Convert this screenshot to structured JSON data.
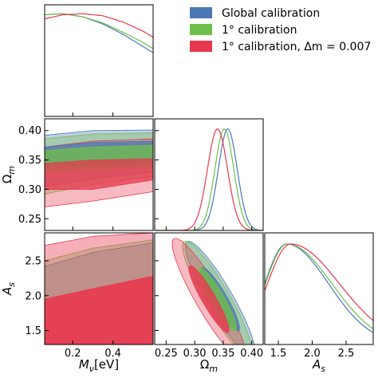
{
  "chart_data": {
    "type": "corner",
    "legend": {
      "placement": "top-right",
      "entries": [
        {
          "label": "Global calibration",
          "color": "#4a78b5"
        },
        {
          "label": "1° calibration",
          "color": "#6fbf4a"
        },
        {
          "label": "1° calibration, Δm = 0.007",
          "color": "#e8384f"
        }
      ]
    },
    "parameters": [
      {
        "label": "M_ν[eV]",
        "label_main": "M",
        "label_sub": "ν",
        "label_suffix": "[eV]",
        "range": [
          0.06,
          0.6
        ],
        "ticks": [
          "0.2",
          "0.4"
        ],
        "tick_values": [
          0.2,
          0.4
        ]
      },
      {
        "label": "Ω_m",
        "label_main": "Ω",
        "label_sub": "m",
        "label_suffix": "",
        "range": [
          0.23,
          0.42
        ],
        "ticks": [
          "0.25",
          "0.30",
          "0.35",
          "0.40"
        ],
        "tick_values": [
          0.25,
          0.3,
          0.35,
          0.4
        ]
      },
      {
        "label": "A_s",
        "label_main": "A",
        "label_sub": "s",
        "label_suffix": "",
        "range": [
          1.3,
          2.9
        ],
        "ticks": [
          "1.5",
          "2.0",
          "2.5"
        ],
        "tick_values": [
          1.5,
          2.0,
          2.5
        ]
      }
    ],
    "marginals": {
      "M_nu": {
        "x": [
          0.06,
          0.15,
          0.25,
          0.35,
          0.45,
          0.55,
          0.6
        ],
        "series": [
          {
            "name": "Global calibration",
            "y": [
              0.99,
              1.0,
              0.97,
              0.9,
              0.8,
              0.68,
              0.62
            ]
          },
          {
            "name": "1° calibration",
            "y": [
              0.99,
              1.0,
              0.97,
              0.91,
              0.82,
              0.72,
              0.66
            ]
          },
          {
            "name": "1° calibration, Δm = 0.007",
            "y": [
              0.95,
              0.99,
              1.0,
              0.98,
              0.92,
              0.83,
              0.77
            ]
          }
        ]
      },
      "Omega_m": {
        "peaks": [
          0.358,
          0.352,
          0.34
        ],
        "widths": [
          0.0165,
          0.0165,
          0.0175
        ],
        "series": [
          {
            "name": "Global calibration",
            "peak": 0.358,
            "sigma": 0.0165
          },
          {
            "name": "1° calibration",
            "peak": 0.352,
            "sigma": 0.0165
          },
          {
            "name": "1° calibration, Δm = 0.007",
            "peak": 0.34,
            "sigma": 0.0175
          }
        ]
      },
      "A_s": {
        "series": [
          {
            "name": "Global calibration",
            "peak": 1.62,
            "sigma_left": 0.32,
            "sigma_right": 0.62
          },
          {
            "name": "1° calibration",
            "peak": 1.63,
            "sigma_left": 0.32,
            "sigma_right": 0.66
          },
          {
            "name": "1° calibration, Δm = 0.007",
            "peak": 1.68,
            "sigma_left": 0.34,
            "sigma_right": 0.72
          }
        ]
      }
    },
    "joint": {
      "Omega_m_vs_M_nu": {
        "series": [
          {
            "name": "Global calibration",
            "sigma1": [
              [
                0.06,
                0.372,
                0.342
              ],
              [
                0.3,
                0.38,
                0.34
              ],
              [
                0.6,
                0.382,
                0.344
              ]
            ],
            "sigma2": [
              [
                0.06,
                0.392,
                0.305
              ],
              [
                0.3,
                0.4,
                0.318
              ],
              [
                0.6,
                0.401,
                0.33
              ]
            ]
          },
          {
            "name": "1° calibration",
            "sigma1": [
              [
                0.06,
                0.366,
                0.33
              ],
              [
                0.3,
                0.372,
                0.334
              ],
              [
                0.6,
                0.375,
                0.338
              ]
            ],
            "sigma2": [
              [
                0.06,
                0.386,
                0.292
              ],
              [
                0.3,
                0.394,
                0.308
              ],
              [
                0.6,
                0.396,
                0.322
              ]
            ]
          },
          {
            "name": "1° calibration, Δm = 0.007",
            "sigma1": [
              [
                0.06,
                0.344,
                0.3
              ],
              [
                0.3,
                0.35,
                0.3
              ],
              [
                0.6,
                0.352,
                0.316
              ]
            ],
            "sigma2": [
              [
                0.06,
                0.372,
                0.27
              ],
              [
                0.3,
                0.382,
                0.28
              ],
              [
                0.6,
                0.386,
                0.296
              ]
            ]
          }
        ]
      },
      "A_s_vs_M_nu": {
        "series": [
          {
            "name": "Global calibration",
            "sigma2_upper": [
              [
                0.06,
                2.42
              ],
              [
                0.3,
                2.62
              ],
              [
                0.6,
                2.76
              ]
            ]
          },
          {
            "name": "1° calibration",
            "sigma2_upper": [
              [
                0.06,
                2.5
              ],
              [
                0.3,
                2.68
              ],
              [
                0.6,
                2.8
              ]
            ]
          },
          {
            "name": "1° calibration, Δm = 0.007",
            "sigma1_upper": [
              [
                0.06,
                1.95
              ],
              [
                0.3,
                2.1
              ],
              [
                0.6,
                2.28
              ]
            ],
            "sigma2_upper": [
              [
                0.06,
                2.72
              ],
              [
                0.3,
                2.85
              ],
              [
                0.6,
                2.9
              ]
            ]
          }
        ]
      },
      "A_s_vs_Omega_m": {
        "series": [
          {
            "name": "Global calibration",
            "center": [
              0.345,
              1.95
            ],
            "sigma1": [
              0.012,
              0.52
            ],
            "sigma2": [
              0.022,
              0.95
            ],
            "tilt": -0.55
          },
          {
            "name": "1° calibration",
            "center": [
              0.34,
              1.95
            ],
            "sigma1": [
              0.012,
              0.52
            ],
            "sigma2": [
              0.022,
              0.95
            ],
            "tilt": -0.55
          },
          {
            "name": "1° calibration, Δm = 0.007",
            "center": [
              0.325,
              1.95
            ],
            "sigma1": [
              0.012,
              0.55
            ],
            "sigma2": [
              0.023,
              1.0
            ],
            "tilt": -0.55
          }
        ]
      }
    },
    "grid": false
  }
}
